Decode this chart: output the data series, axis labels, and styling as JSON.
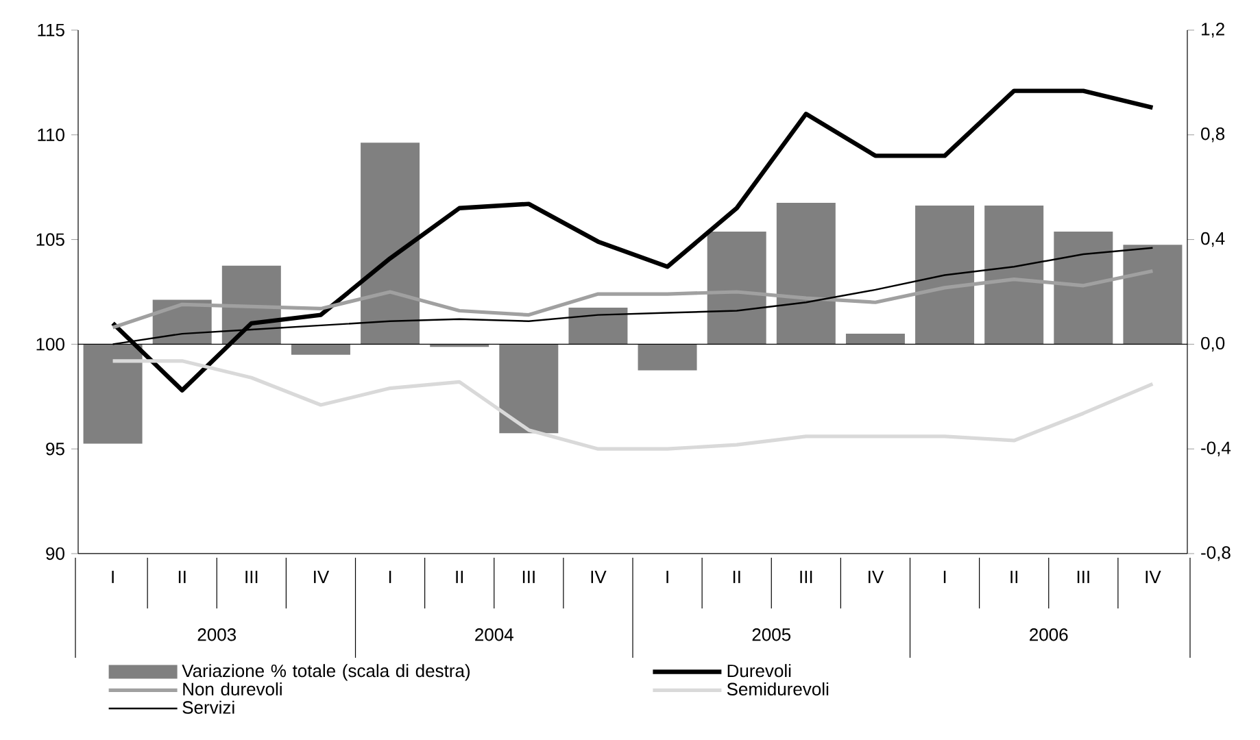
{
  "chart_data": {
    "type": "bar",
    "categories": [
      "I",
      "II",
      "III",
      "IV",
      "I",
      "II",
      "III",
      "IV",
      "I",
      "II",
      "III",
      "IV",
      "I",
      "II",
      "III",
      "IV"
    ],
    "annotations": [
      "2003",
      "2004",
      "2005",
      "2006"
    ],
    "ylim": [
      90,
      115
    ],
    "yticks": [
      90,
      95,
      100,
      105,
      110,
      115
    ],
    "y2lim": [
      -0.8,
      1.2
    ],
    "y2ticks": [
      {
        "value": -0.8,
        "label": "-0,8"
      },
      {
        "value": -0.4,
        "label": "-0,4"
      },
      {
        "value": 0,
        "label": "0,0"
      },
      {
        "value": 0.4,
        "label": "0,4"
      },
      {
        "value": 0.8,
        "label": "0,8"
      },
      {
        "value": 1.2,
        "label": "1,2"
      }
    ],
    "legend": "bottom",
    "marker": "none",
    "series": [
      {
        "name": "Variazione % totale (scala di destra)",
        "axis": "y2",
        "color": "#808080",
        "values": [
          -0.38,
          0.17,
          0.3,
          -0.04,
          0.77,
          -0.01,
          -0.34,
          0.14,
          -0.1,
          0.43,
          0.54,
          0.04,
          0.53,
          0.53,
          0.43,
          0.38
        ]
      },
      {
        "name": "Durevoli",
        "type": "line",
        "color": "#000000",
        "values": [
          101.0,
          97.8,
          101.0,
          101.4,
          104.1,
          106.5,
          106.7,
          104.9,
          103.7,
          106.5,
          111.0,
          109.0,
          109.0,
          112.1,
          112.1,
          111.3
        ]
      },
      {
        "name": "Non durevoli",
        "type": "line",
        "color": "#a0a0a0",
        "values": [
          100.8,
          101.9,
          101.8,
          101.7,
          102.5,
          101.6,
          101.4,
          102.4,
          102.4,
          102.5,
          102.2,
          102.0,
          102.7,
          103.1,
          102.8,
          103.5
        ]
      },
      {
        "name": "Semidurevoli",
        "type": "line",
        "color": "#d9d9d9",
        "values": [
          99.2,
          99.2,
          98.4,
          97.1,
          97.9,
          98.2,
          95.9,
          95.0,
          95.0,
          95.2,
          95.6,
          95.6,
          95.6,
          95.4,
          96.7,
          98.1
        ]
      },
      {
        "name": "Servizi",
        "type": "line",
        "color": "#000000",
        "values": [
          100.0,
          100.5,
          100.7,
          100.9,
          101.1,
          101.2,
          101.1,
          101.4,
          101.5,
          101.6,
          102.0,
          102.6,
          103.3,
          103.7,
          104.3,
          104.6
        ]
      }
    ]
  }
}
